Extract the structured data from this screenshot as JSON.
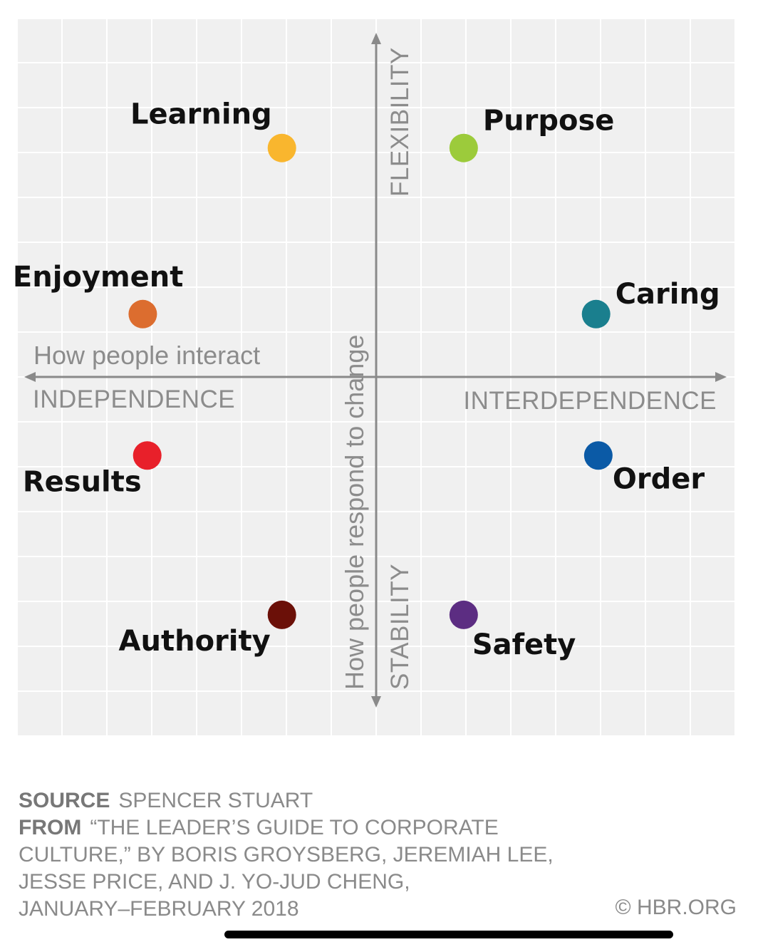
{
  "chart_data": {
    "type": "scatter",
    "x_axis": {
      "title": "How people interact",
      "negative_label": "INDEPENDENCE",
      "positive_label": "INTERDEPENDENCE",
      "range": [
        -8,
        8
      ]
    },
    "y_axis": {
      "title": "How people respond to change",
      "positive_label": "FLEXIBILITY",
      "negative_label": "STABILITY",
      "range": [
        -7.5,
        8.5
      ]
    },
    "grid": true,
    "points": [
      {
        "label": "Learning",
        "x": -2.1,
        "y": 5.1,
        "color": "#F9B62E"
      },
      {
        "label": "Purpose",
        "x": 1.95,
        "y": 5.1,
        "color": "#9CCB3B"
      },
      {
        "label": "Enjoyment",
        "x": -5.2,
        "y": 1.4,
        "color": "#DC6D2F"
      },
      {
        "label": "Caring",
        "x": 4.9,
        "y": 1.4,
        "color": "#1A7F8E"
      },
      {
        "label": "Results",
        "x": -5.1,
        "y": -1.75,
        "color": "#E8202A"
      },
      {
        "label": "Order",
        "x": 4.95,
        "y": -1.75,
        "color": "#0B5AA6"
      },
      {
        "label": "Authority",
        "x": -2.1,
        "y": -5.3,
        "color": "#6B1008"
      },
      {
        "label": "Safety",
        "x": 1.95,
        "y": -5.3,
        "color": "#5C2D82"
      }
    ]
  },
  "footer": {
    "source_key": "SOURCE",
    "source_value": "SPENCER STUART",
    "from_key": "FROM",
    "from_lines": [
      "“THE LEADER’S GUIDE TO CORPORATE",
      "CULTURE,” BY BORIS GROYSBERG, JEREMIAH LEE,",
      "JESSE PRICE, AND J. YO-JUD CHENG,",
      "JANUARY–FEBRUARY 2018"
    ],
    "credit": "© HBR.ORG"
  }
}
